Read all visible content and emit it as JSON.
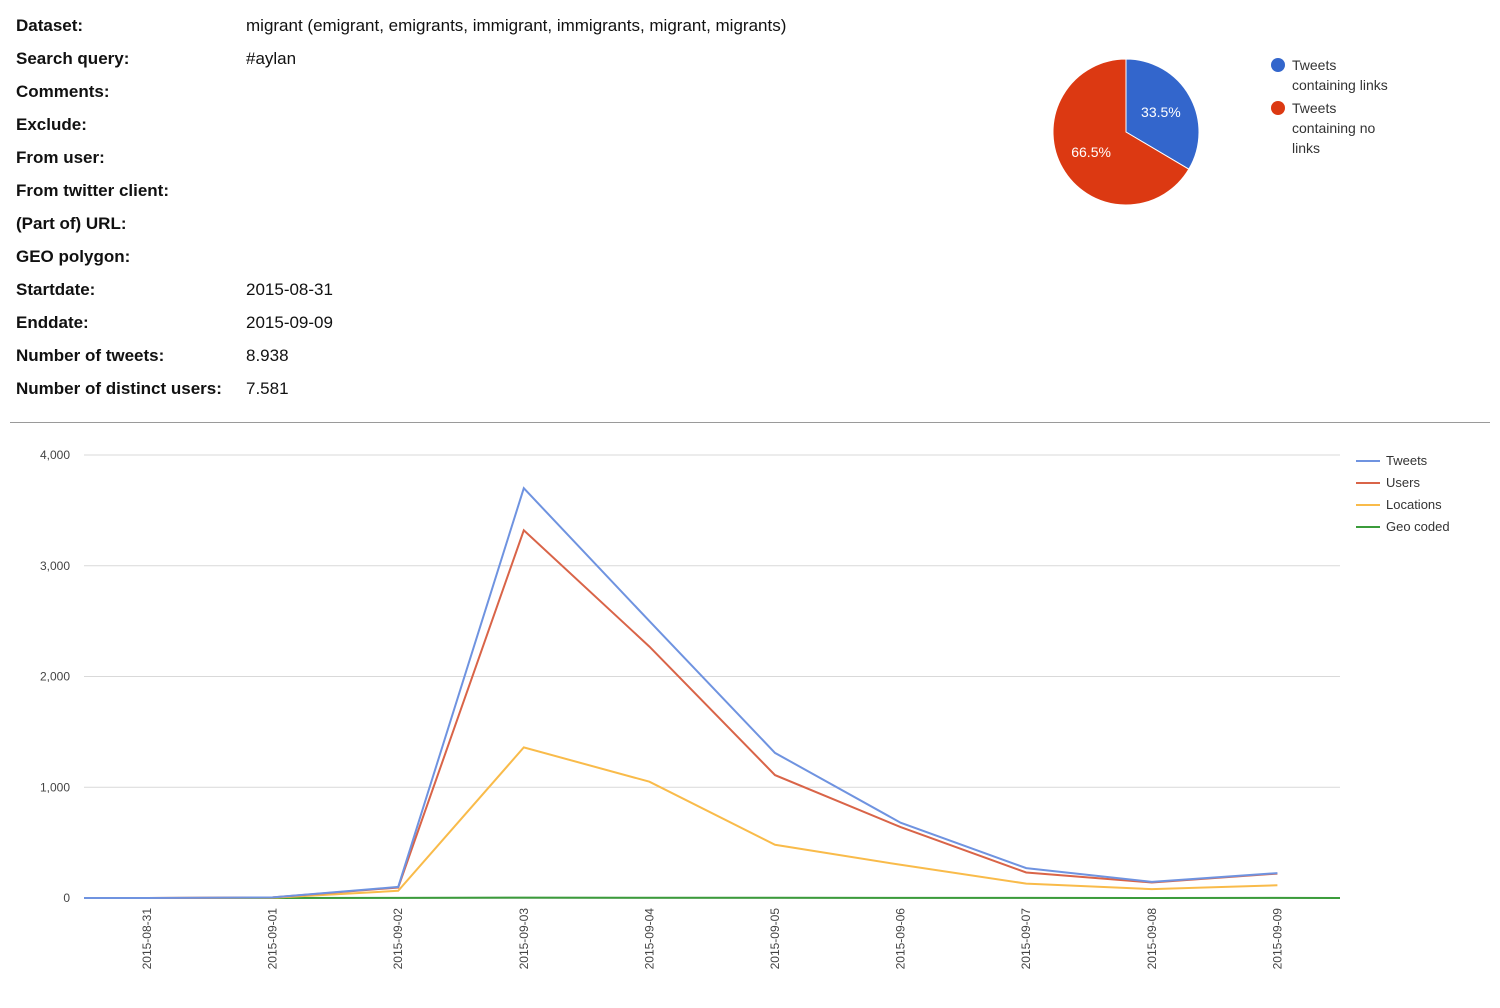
{
  "info": [
    {
      "label": "Dataset:",
      "value": "migrant (emigrant, emigrants, immigrant, immigrants, migrant, migrants)"
    },
    {
      "label": "Search query:",
      "value": "#aylan"
    },
    {
      "label": "Comments:",
      "value": ""
    },
    {
      "label": "Exclude:",
      "value": ""
    },
    {
      "label": "From user:",
      "value": ""
    },
    {
      "label": "From twitter client:",
      "value": ""
    },
    {
      "label": "(Part of) URL:",
      "value": ""
    },
    {
      "label": "GEO polygon:",
      "value": ""
    },
    {
      "label": "Startdate:",
      "value": "2015-08-31"
    },
    {
      "label": "Enddate:",
      "value": "2015-09-09"
    },
    {
      "label": "Number of tweets:",
      "value": "8.938"
    },
    {
      "label": "Number of distinct users:",
      "value": "7.581"
    }
  ],
  "chart_data": [
    {
      "type": "pie",
      "slices": [
        {
          "label": "Tweets containing links",
          "value": 33.5,
          "display": "33.5%",
          "color": "#3366cc"
        },
        {
          "label": "Tweets containing no links",
          "value": 66.5,
          "display": "66.5%",
          "color": "#dc3912"
        }
      ],
      "legend_position": "right"
    },
    {
      "type": "line",
      "x": [
        "2015-08-31",
        "2015-09-01",
        "2015-09-02",
        "2015-09-03",
        "2015-09-04",
        "2015-09-05",
        "2015-09-06",
        "2015-09-07",
        "2015-09-08",
        "2015-09-09"
      ],
      "yticks": [
        0,
        1000,
        2000,
        3000,
        4000
      ],
      "ytick_labels": [
        "0",
        "1,000",
        "2,000",
        "3,000",
        "4,000"
      ],
      "ylim": [
        0,
        4000
      ],
      "grid": true,
      "legend_position": "top-right",
      "series": [
        {
          "name": "Tweets",
          "color": "#6f93e0",
          "values": [
            0,
            5,
            100,
            3700,
            2500,
            1310,
            680,
            270,
            145,
            225
          ]
        },
        {
          "name": "Users",
          "color": "#d96448",
          "values": [
            0,
            5,
            95,
            3320,
            2270,
            1110,
            640,
            230,
            140,
            220
          ]
        },
        {
          "name": "Locations",
          "color": "#f9bb4a",
          "values": [
            0,
            3,
            65,
            1360,
            1050,
            480,
            300,
            130,
            80,
            115
          ]
        },
        {
          "name": "Geo coded",
          "color": "#3b9c3b",
          "values": [
            0,
            0,
            1,
            4,
            3,
            2,
            1,
            1,
            0,
            1
          ]
        }
      ]
    }
  ]
}
